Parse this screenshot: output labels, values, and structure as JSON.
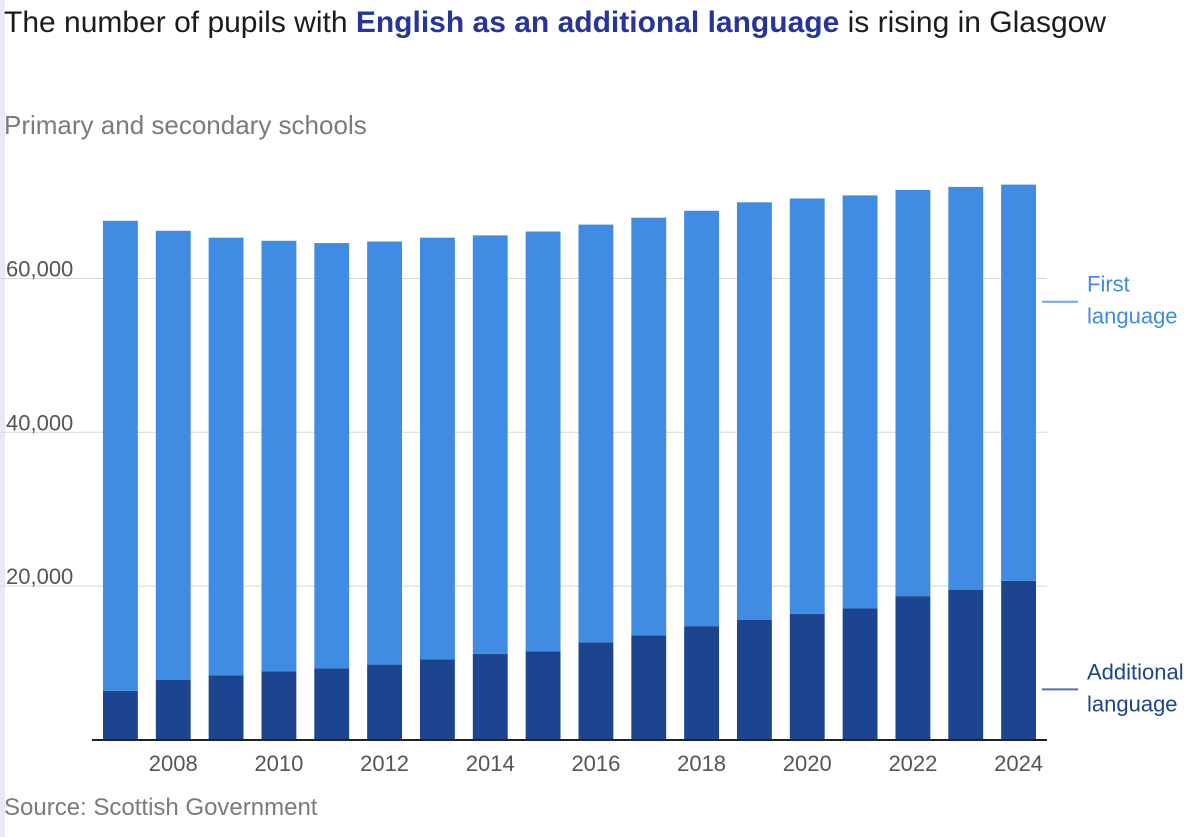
{
  "title": {
    "before": "The number of pupils with ",
    "highlight": "English as an additional language",
    "after": " is rising in Glasgow"
  },
  "subtitle": "Primary and secondary schools",
  "source": "Source: Scottish Government",
  "colors": {
    "first_language": "#3f8ce2",
    "additional_language": "#1c448f",
    "highlight_text": "#27349a",
    "axis": "#222222",
    "grid": "#d9d9d9"
  },
  "chart_data": {
    "type": "bar",
    "stacked": true,
    "categories": [
      "2007",
      "2008",
      "2009",
      "2010",
      "2011",
      "2012",
      "2013",
      "2014",
      "2015",
      "2016",
      "2017",
      "2018",
      "2019",
      "2020",
      "2021",
      "2022",
      "2023",
      "2024"
    ],
    "x_tick_labels": [
      "2008",
      "2010",
      "2012",
      "2014",
      "2016",
      "2018",
      "2020",
      "2022",
      "2024"
    ],
    "y_ticks": [
      20000,
      40000,
      60000
    ],
    "y_tick_labels": [
      "20,000",
      "40,000",
      "60,000"
    ],
    "ylim": [
      0,
      78000
    ],
    "series": [
      {
        "name": "Additional language",
        "label_lines": [
          "Additional",
          "language"
        ],
        "color": "#1c448f",
        "values": [
          6400,
          7800,
          8400,
          8900,
          9300,
          9800,
          10500,
          11200,
          11500,
          12700,
          13600,
          14800,
          15600,
          16400,
          17100,
          18700,
          19500,
          20700
        ]
      },
      {
        "name": "First language",
        "label_lines": [
          "First",
          "language"
        ],
        "color": "#3f8ce2",
        "values": [
          61100,
          58400,
          56900,
          56000,
          55300,
          55000,
          54800,
          54400,
          54600,
          54300,
          54300,
          54000,
          54300,
          54000,
          53700,
          52800,
          52400,
          51500
        ]
      }
    ],
    "xlabel": "",
    "ylabel": "",
    "grid": true
  }
}
